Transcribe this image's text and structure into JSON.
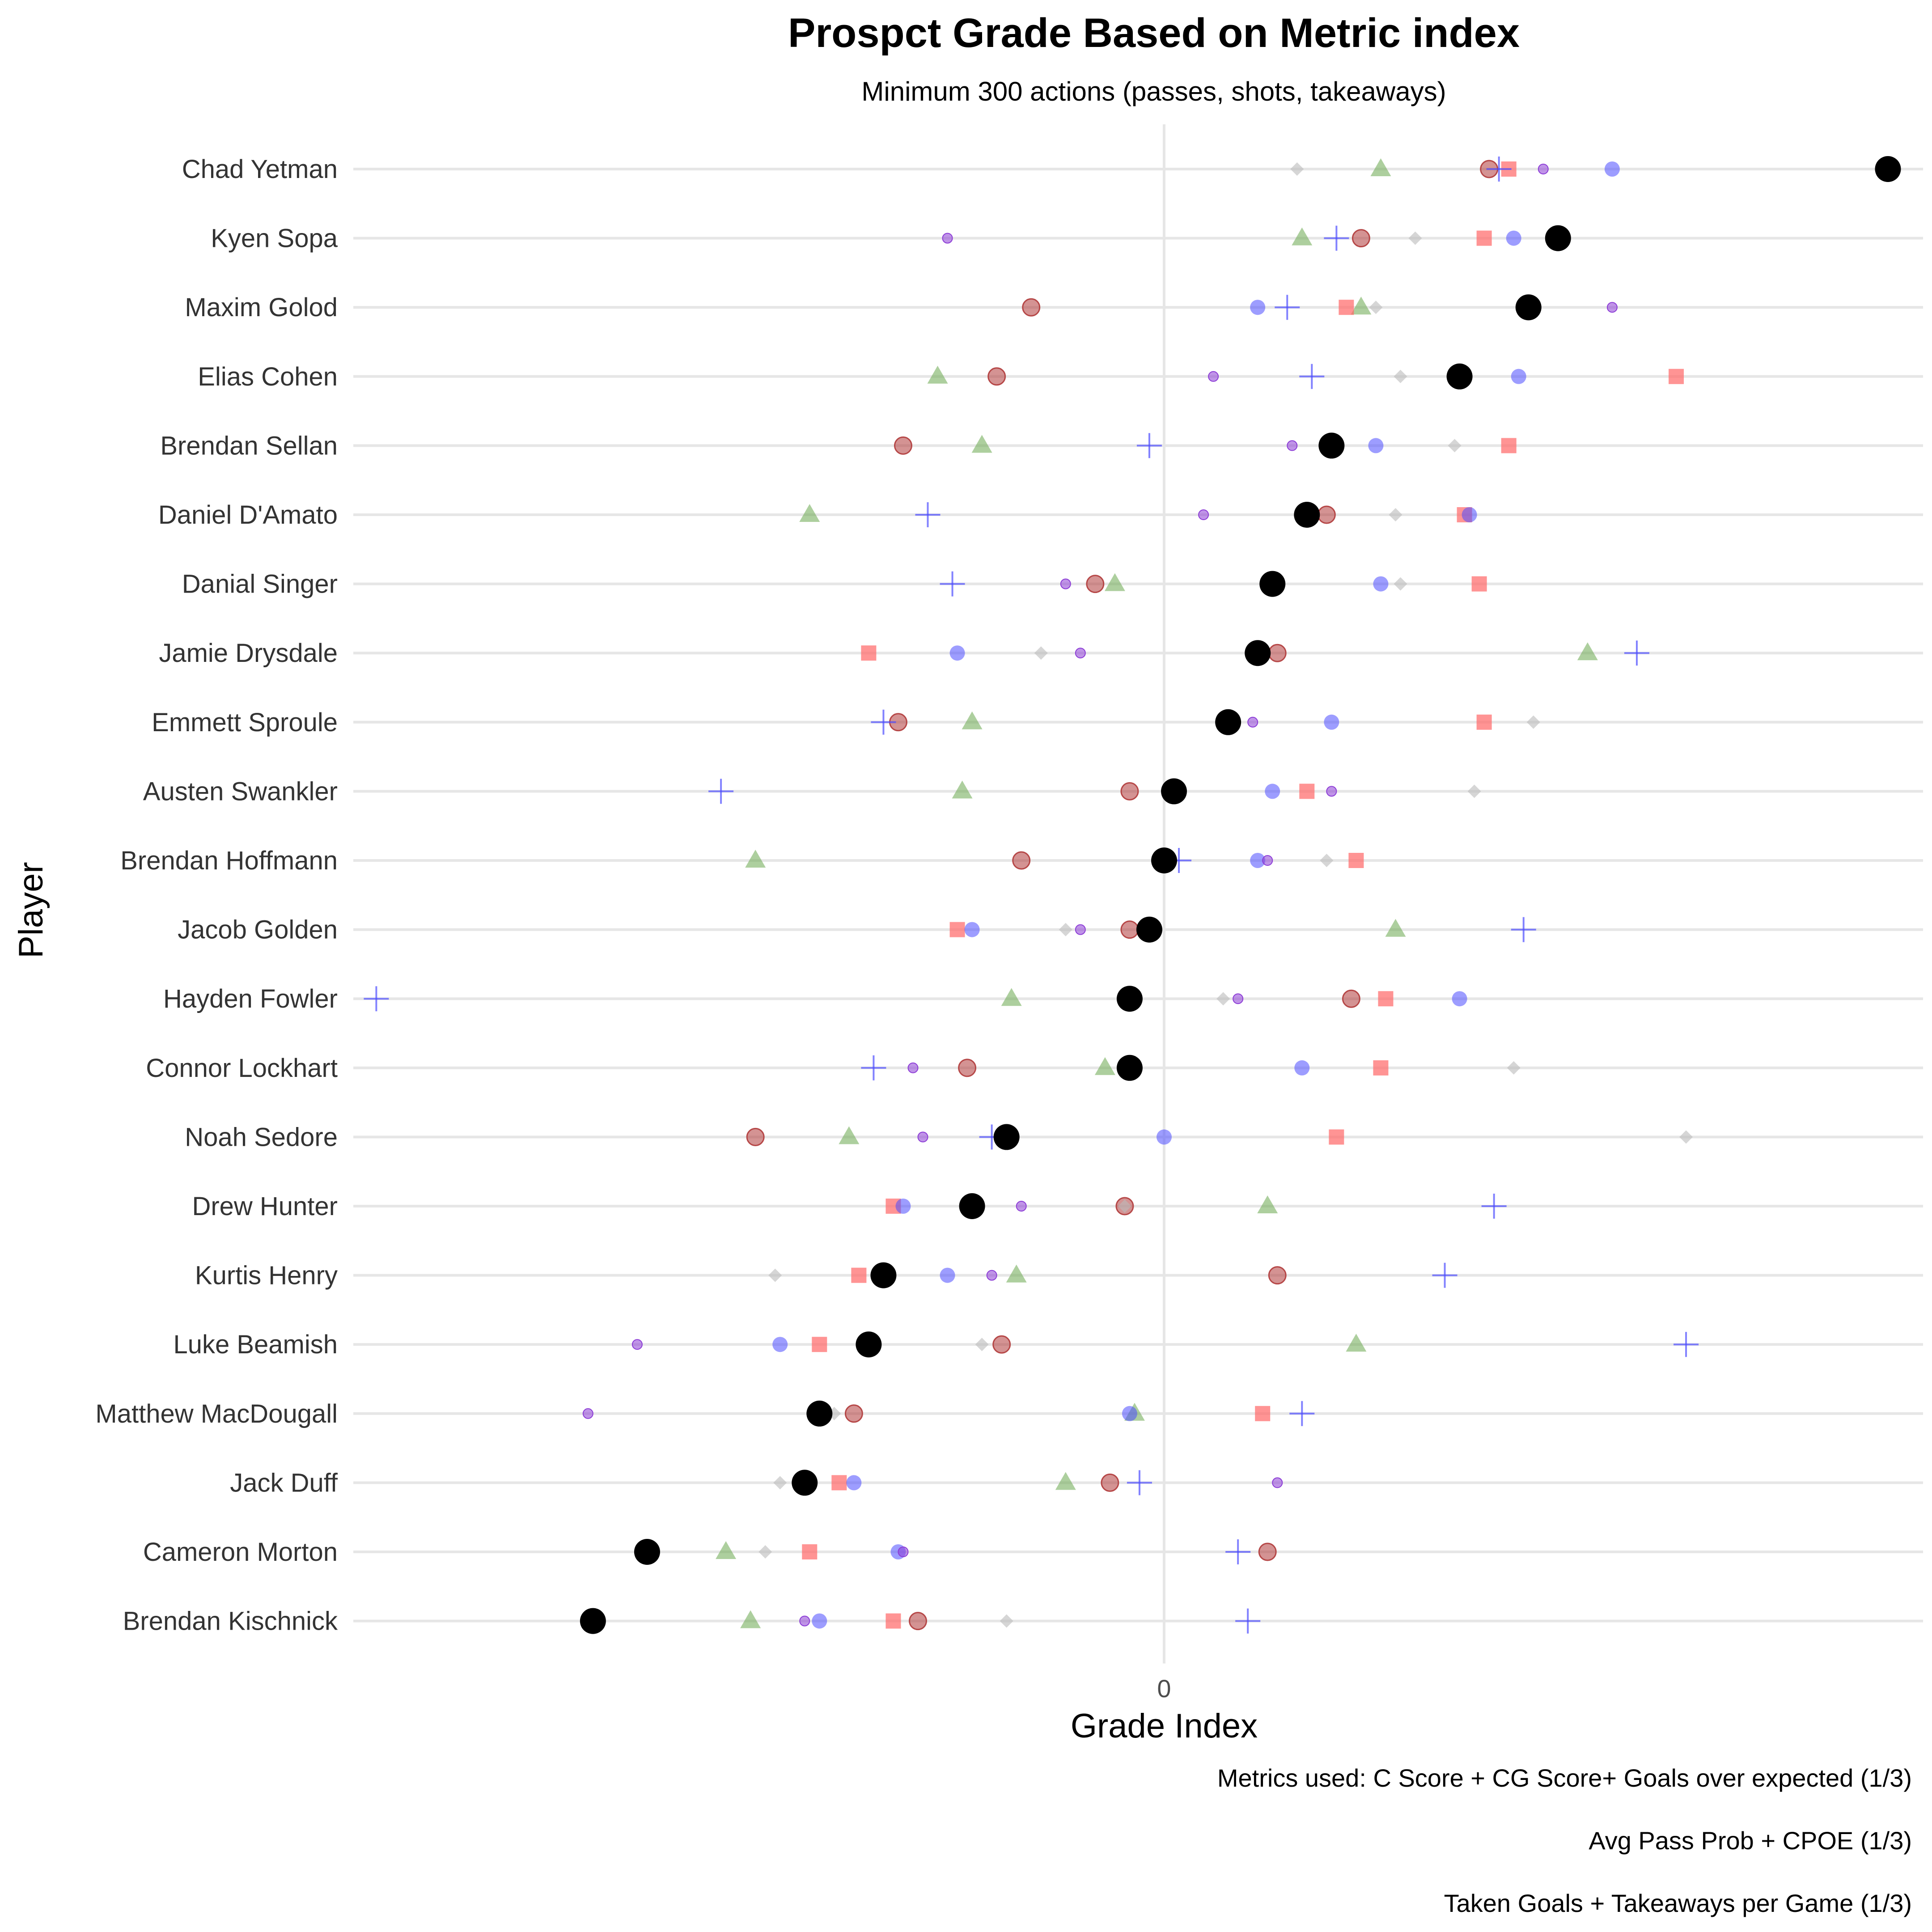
{
  "chart_data": {
    "type": "scatter",
    "title": "Prospct Grade Based on Metric index",
    "subtitle": "Minimum 300 actions (passes, shots, takeaways)",
    "xlabel": "Grade Index",
    "ylabel": "Player",
    "x_ticks": [
      "0"
    ],
    "xlim": [
      -2.45,
      1.65
    ],
    "grid": "horizontal lines per player, vertical line at 0",
    "legend": "none",
    "captions": [
      "Metrics used: C Score + CG Score+ Goals over expected (1/3)",
      "Avg Pass Prob + CPOE (1/3)",
      "Taken Goals + Takeaways per Game (1/3)"
    ],
    "players": [
      "Chad Yetman",
      "Kyen Sopa",
      "Maxim Golod",
      "Elias Cohen",
      "Brendan Sellan",
      "Daniel D'Amato",
      "Danial Singer",
      "Jamie Drysdale",
      "Emmett Sproule",
      "Austen Swankler",
      "Brendan Hoffmann",
      "Jacob Golden",
      "Hayden Fowler",
      "Connor Lockhart",
      "Noah Sedore",
      "Drew Hunter",
      "Kurtis Henry",
      "Luke Beamish",
      "Matthew MacDougall",
      "Jack Duff",
      "Cameron Morton",
      "Brendan Kischnick"
    ],
    "series": [
      {
        "name": "Grade Index",
        "marker": "circle-large",
        "color": "#000000",
        "opacity": 1.0,
        "values": [
          1.47,
          0.8,
          0.74,
          0.6,
          0.34,
          0.29,
          0.22,
          0.19,
          0.13,
          0.02,
          0.0,
          -0.03,
          -0.07,
          -0.07,
          -0.32,
          -0.39,
          -0.57,
          -0.6,
          -0.7,
          -0.73,
          -1.05,
          -1.16
        ]
      },
      {
        "name": "",
        "marker": "triangle",
        "color": "#6aa84f",
        "opacity": 0.55,
        "values": [
          0.44,
          0.28,
          0.4,
          -0.46,
          -0.37,
          -0.72,
          -0.1,
          0.86,
          -0.39,
          -0.41,
          -0.83,
          0.47,
          -0.31,
          -0.12,
          -0.64,
          0.21,
          -0.3,
          0.39,
          -0.06,
          -0.2,
          -0.89,
          -0.84
        ]
      },
      {
        "name": "",
        "marker": "square",
        "color": "#ff6666",
        "opacity": 0.7,
        "values": [
          0.7,
          0.65,
          0.37,
          1.04,
          0.7,
          0.61,
          0.64,
          -0.6,
          0.65,
          0.29,
          0.39,
          -0.42,
          0.45,
          0.44,
          0.35,
          -0.55,
          -0.62,
          -0.7,
          0.2,
          -0.66,
          -0.72,
          -0.55
        ]
      },
      {
        "name": "",
        "marker": "circle-medium",
        "color": "#b03a3a",
        "opacity": 0.55,
        "values": [
          0.66,
          0.4,
          -0.27,
          -0.34,
          -0.53,
          0.33,
          -0.14,
          0.23,
          -0.54,
          -0.07,
          -0.29,
          -0.07,
          0.38,
          -0.4,
          -0.83,
          -0.08,
          0.23,
          -0.33,
          -0.63,
          -0.11,
          0.21,
          -0.5
        ]
      },
      {
        "name": "",
        "marker": "circle-blue",
        "color": "#4d4dff",
        "opacity": 0.55,
        "values": [
          0.91,
          0.71,
          0.19,
          0.72,
          0.43,
          0.62,
          0.44,
          -0.42,
          0.34,
          0.22,
          0.19,
          -0.39,
          0.6,
          0.28,
          0.0,
          -0.53,
          -0.44,
          -0.78,
          -0.07,
          -0.63,
          -0.54,
          -0.7
        ]
      },
      {
        "name": "",
        "marker": "circle-small",
        "color": "#8c3cd6",
        "opacity": 0.55,
        "values": [
          0.77,
          -0.44,
          0.91,
          0.1,
          0.26,
          0.08,
          -0.2,
          -0.17,
          0.18,
          0.34,
          0.21,
          -0.17,
          0.15,
          -0.51,
          -0.49,
          -0.29,
          -0.35,
          -1.07,
          -1.17,
          0.23,
          -0.53,
          -0.73
        ]
      },
      {
        "name": "",
        "marker": "diamond",
        "color": "#bbbbbb",
        "opacity": 0.6,
        "values": [
          0.27,
          0.51,
          0.43,
          0.48,
          0.59,
          0.47,
          0.48,
          -0.25,
          0.75,
          0.63,
          0.33,
          -0.2,
          0.12,
          0.71,
          1.06,
          -0.08,
          -0.79,
          -0.37,
          -0.67,
          -0.78,
          -0.81,
          -0.32
        ]
      },
      {
        "name": "",
        "marker": "plus",
        "color": "#4d4dff",
        "opacity": 0.7,
        "values": [
          0.68,
          0.35,
          0.25,
          0.3,
          -0.03,
          -0.48,
          -0.43,
          0.96,
          -0.57,
          -0.9,
          0.03,
          0.73,
          -1.6,
          -0.59,
          -0.35,
          0.67,
          0.57,
          1.06,
          0.28,
          -0.05,
          0.15,
          0.17
        ]
      }
    ]
  }
}
